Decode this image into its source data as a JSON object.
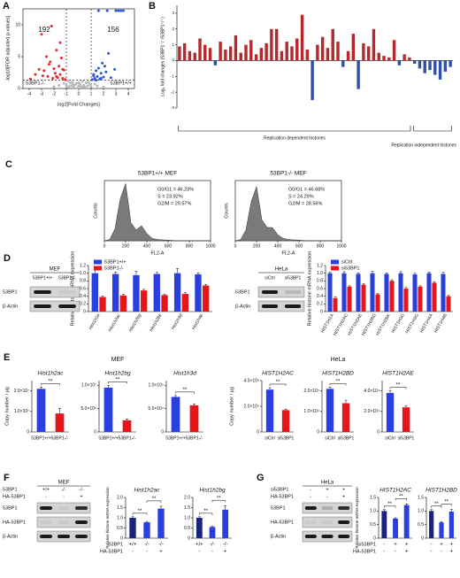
{
  "panel_labels": [
    "A",
    "B",
    "C",
    "D",
    "E",
    "F",
    "G"
  ],
  "group_titles": [
    "MEF",
    "HeLa"
  ],
  "blots": [
    {
      "title": "MEF",
      "lanes": [
        "53BP1+/+",
        "53BP1-/-"
      ],
      "rows": [
        "53BP1",
        "β-Actin"
      ]
    },
    {
      "title": "HeLa",
      "lanes": [
        "siCtrl",
        "si53BP1"
      ],
      "rows": [
        "53BP1",
        "β-Actin"
      ]
    },
    {
      "title": "MEF",
      "header": [
        {
          "label": "53BP1",
          "marks": [
            "+/+",
            "-/-",
            "-/-"
          ]
        },
        {
          "label": "HA-53BP1",
          "marks": [
            "-",
            "-",
            "+"
          ]
        }
      ],
      "rows": [
        "53BP1",
        "HA-53BP1",
        "β-Actin"
      ]
    },
    {
      "title": "HeLa",
      "header": [
        {
          "label": "si53BP1",
          "marks": [
            "-",
            "+",
            "+"
          ]
        },
        {
          "label": "HA-53BP1",
          "marks": [
            "-",
            "-",
            "+"
          ]
        }
      ],
      "rows": [
        "53BP1",
        "HA-53BP1",
        "β-Actin"
      ]
    }
  ],
  "chart_data": [
    {
      "type": "scatter",
      "xlabel": "log2[Fold Changes]",
      "ylabel": "-log10[FDR adjusted p-values]",
      "xlim": [
        -4.5,
        4.5
      ],
      "xticks": [
        -4,
        -3,
        -2,
        -1,
        0,
        1,
        2,
        3,
        4
      ],
      "ylim": [
        0,
        12.5
      ],
      "yticks": [
        0,
        5,
        10
      ],
      "thresholds_x": [
        -1,
        1
      ],
      "threshold_y": 1.3,
      "annotations": [
        "192",
        "156",
        "53BP1-/-",
        "53BP1+/+"
      ],
      "series": [
        {
          "color": "#e8262b",
          "x": [
            -3.9,
            -3.5,
            -3.2,
            -3.0,
            -2.8,
            -2.6,
            -2.5,
            -2.3,
            -2.2,
            -2.0,
            -1.9,
            -1.8,
            -1.7,
            -1.6,
            -1.5,
            -1.4,
            -1.3,
            -1.2,
            -1.1,
            -2.4,
            -1.8,
            -1.5,
            -2.9,
            -1.3,
            -2.1
          ],
          "values": [
            1.5,
            2.2,
            3.0,
            8.5,
            2.8,
            5.0,
            1.9,
            4.2,
            9.8,
            3.1,
            2.4,
            6.0,
            1.7,
            3.5,
            2.2,
            4.8,
            1.6,
            2.9,
            1.4,
            3.8,
            1.9,
            7.2,
            2.0,
            3.0,
            1.6
          ]
        },
        {
          "color": "#2a55d6",
          "x": [
            1.1,
            1.2,
            1.3,
            1.4,
            1.5,
            1.6,
            1.7,
            1.8,
            1.9,
            2.0,
            2.2,
            2.4,
            2.6,
            2.9,
            3.2,
            3.6,
            1.4,
            1.6,
            2.1,
            2.3,
            3.0,
            3.4,
            1.2,
            1.8
          ],
          "values": [
            1.4,
            2.0,
            1.6,
            2.8,
            1.9,
            3.2,
            1.5,
            2.4,
            4.0,
            1.8,
            2.6,
            5.5,
            1.7,
            3.0,
            12.2,
            12.2,
            1.3,
            12.2,
            3.5,
            12.2,
            12.2,
            12.2,
            2.2,
            1.6
          ]
        },
        {
          "color": "#b8b8b8",
          "x": [
            -1.0,
            -0.9,
            -0.8,
            -0.7,
            -0.6,
            -0.5,
            -0.4,
            -0.3,
            -0.2,
            -0.1,
            0,
            0.1,
            0.2,
            0.3,
            0.4,
            0.5,
            0.6,
            0.7,
            0.8,
            0.9,
            1.0,
            -1.6,
            -2.0,
            1.5,
            2.0,
            -0.5,
            0.3,
            -1.2,
            1.3,
            0.0
          ],
          "values": [
            0.5,
            1.2,
            0.3,
            0.9,
            0.4,
            1.0,
            0.2,
            0.6,
            0.8,
            0.1,
            0.4,
            0.7,
            0.3,
            1.1,
            0.5,
            0.2,
            0.9,
            0.4,
            1.0,
            0.6,
            0.3,
            0.5,
            0.3,
            0.4,
            0.2,
            0.6,
            0.2,
            0.8,
            0.7,
            0.9
          ]
        }
      ]
    },
    {
      "type": "bar",
      "ylabel": "Log₂ fold changes (53BP1⁻/⁻/53BP1⁺/⁺)",
      "ylim": [
        -3,
        3.5
      ],
      "yticks": [
        -3,
        -2,
        -1,
        0,
        1,
        2,
        3
      ],
      "color": "#b5282c",
      "negative_color": "#2f4fa8",
      "annotations": [
        "Replication dependent histones",
        "Replication independent histones"
      ],
      "categories": [
        null,
        null,
        null,
        null,
        null,
        null,
        null,
        null,
        null,
        null,
        null,
        null,
        null,
        null,
        null,
        null,
        null,
        null,
        null,
        null,
        null,
        null,
        null,
        null,
        null,
        null,
        null,
        null,
        null,
        null,
        null,
        null,
        null,
        null,
        null,
        null,
        null,
        null,
        null,
        null,
        null,
        null,
        null,
        null,
        null,
        null,
        null,
        null,
        null,
        null,
        null,
        null,
        null,
        null
      ],
      "values": [
        0.9,
        1.1,
        0.6,
        0.5,
        1.4,
        1.0,
        0.8,
        -0.3,
        1.2,
        0.7,
        0.9,
        1.6,
        0.5,
        1.0,
        1.3,
        0.4,
        0.8,
        1.1,
        2.0,
        2.0,
        0.6,
        1.2,
        0.9,
        1.4,
        2.9,
        0.7,
        -2.5,
        1.0,
        1.5,
        0.8,
        2.0,
        1.2,
        -0.4,
        0.6,
        1.7,
        -1.8,
        1.1,
        0.9,
        2.0,
        0.5,
        0.3,
        0.2,
        1.3,
        -0.3,
        0.4,
        0.2,
        -0.2,
        -0.5,
        -0.8,
        -0.6,
        -0.9,
        -1.2,
        -0.7,
        -0.4
      ]
    },
    {
      "type": "area",
      "title": "53BP1+/+ MEF",
      "xlabel": "FL2-A",
      "ylabel": "Counts",
      "color": "#7a7a7a",
      "xlim": [
        0,
        1000
      ],
      "xticks": [
        0,
        200,
        400,
        600,
        800,
        1000
      ],
      "ylim": [
        0,
        100
      ],
      "annotations": [
        "G0/G1 = 46.23%",
        "S = 23.92%",
        "G2/M = 29.57%"
      ],
      "x": [
        0,
        50,
        100,
        150,
        200,
        250,
        300,
        350,
        400,
        450,
        500,
        600,
        700,
        800,
        1000
      ],
      "values": [
        0,
        2,
        20,
        70,
        95,
        30,
        18,
        25,
        12,
        4,
        2,
        1,
        0,
        0,
        0
      ]
    },
    {
      "type": "area",
      "title": "53BP1-/- MEF",
      "xlabel": "FL2-A",
      "ylabel": "Counts",
      "color": "#7a7a7a",
      "xlim": [
        0,
        1000
      ],
      "xticks": [
        0,
        200,
        400,
        600,
        800,
        1000
      ],
      "ylim": [
        0,
        100
      ],
      "annotations": [
        "G0/G1 = 46.68%",
        "S = 24.29%",
        "G2/M = 28.56%"
      ],
      "x": [
        0,
        50,
        100,
        150,
        200,
        250,
        300,
        350,
        400,
        450,
        500,
        600,
        700,
        800,
        1000
      ],
      "values": [
        0,
        2,
        18,
        65,
        90,
        35,
        22,
        22,
        10,
        4,
        2,
        1,
        0,
        0,
        0
      ]
    },
    {
      "type": "bar",
      "ylabel": "Relative histone mRNA expression",
      "ylim": [
        0,
        1.2
      ],
      "yticks": [
        0,
        0.2,
        0.4,
        0.6,
        0.8,
        {
          "value": 1,
          "label": "1.0"
        },
        1.2
      ],
      "legend": "upper left",
      "categories": [
        "Hist1h1a",
        "Hist1h2ac",
        "Hist1h2bg",
        "Hist1h2bk",
        "Hist1h3d",
        "Hist1h4e"
      ],
      "series": [
        {
          "name": "53BP1+/+",
          "color": "#2a3fe0",
          "values": [
            1.0,
            0.98,
            0.95,
            0.98,
            1.0,
            0.97
          ],
          "errors": [
            0.08,
            0.05,
            0.1,
            0.04,
            0.12,
            0.04
          ]
        },
        {
          "name": "53BP1-/-",
          "color": "#e5161b",
          "values": [
            0.38,
            0.42,
            0.55,
            0.43,
            0.46,
            0.68
          ],
          "errors": [
            0.02,
            0.03,
            0.03,
            0.02,
            0.03,
            0.03
          ]
        }
      ]
    },
    {
      "type": "bar",
      "ylabel": "Relative histone mRNA expression",
      "ylim": [
        0,
        1.2
      ],
      "yticks": [
        0,
        0.2,
        0.4,
        0.6,
        0.8,
        {
          "value": 1,
          "label": "1.0"
        },
        1.2
      ],
      "legend": "upper left",
      "categories": [
        "HIST1H1A",
        "HIST1H2AC",
        "HIST1H2AE",
        "HIST1H2BD",
        "HIST1H2BK",
        "HIST1H3D",
        "HIST1H3G",
        "HIST1H4A",
        "HIST1H4B"
      ],
      "series": [
        {
          "name": "siCtrl",
          "color": "#2a3fe0",
          "values": [
            1.0,
            1.0,
            0.98,
            1.0,
            0.98,
            1.0,
            0.97,
            1.0,
            0.98
          ],
          "errors": [
            0.03,
            0.04,
            0.03,
            0.05,
            0.03,
            0.04,
            0.03,
            0.03,
            0.04
          ]
        },
        {
          "name": "si53BP1",
          "color": "#e5161b",
          "values": [
            0.35,
            0.65,
            0.7,
            0.45,
            0.8,
            0.6,
            0.65,
            0.75,
            0.4
          ],
          "errors": [
            0.03,
            0.02,
            0.03,
            0.02,
            0.03,
            0.03,
            0.02,
            0.03,
            0.02
          ]
        }
      ]
    },
    {
      "type": "bar",
      "title": "Hist1h2ac",
      "ylabel": "Copy number / μg",
      "ylim": [
        0,
        25000000
      ],
      "yticks": [
        0,
        {
          "value": 10000000,
          "label": "1.0×10⁷"
        },
        {
          "value": 20000000,
          "label": "2.0×10⁷"
        }
      ],
      "categories": [
        "53BP1+/+",
        "53BP1-/-"
      ],
      "colors": [
        "#2a3fe0",
        "#e5161b"
      ],
      "values": [
        21000000,
        9000000
      ],
      "errors": [
        800000,
        2500000
      ],
      "significance": [
        "**"
      ]
    },
    {
      "type": "bar",
      "title": "Hist1h2bg",
      "ylim": [
        0,
        11000000
      ],
      "yticks": [
        0,
        {
          "value": 5000000,
          "label": "5.0×10⁶"
        },
        {
          "value": 10000000,
          "label": "1.0×10⁷"
        }
      ],
      "categories": [
        "53BP1+/+",
        "53BP1-/-"
      ],
      "colors": [
        "#2a3fe0",
        "#e5161b"
      ],
      "values": [
        9500000,
        2500000
      ],
      "errors": [
        500000,
        300000
      ],
      "significance": [
        "**"
      ]
    },
    {
      "type": "bar",
      "title": "Hist1h3d",
      "ylim": [
        0,
        110000
      ],
      "yticks": [
        0,
        {
          "value": 50000,
          "label": "5.0×10⁴"
        },
        {
          "value": 100000,
          "label": "1.0×10⁵"
        }
      ],
      "categories": [
        "53BP1+/+",
        "53BP1-/-"
      ],
      "colors": [
        "#2a3fe0",
        "#e5161b"
      ],
      "values": [
        75000,
        57000
      ],
      "errors": [
        3000,
        3000
      ],
      "significance": [
        "**"
      ]
    },
    {
      "type": "bar",
      "title": "HIST1H2AC",
      "ylabel": "Copy number / μg",
      "ylim": [
        0,
        400000
      ],
      "yticks": [
        0,
        {
          "value": 200000,
          "label": "2.0×10⁵"
        },
        {
          "value": 400000,
          "label": "4.0×10⁵"
        }
      ],
      "categories": [
        "siCtrl",
        "si53BP1"
      ],
      "colors": [
        "#2a3fe0",
        "#e5161b"
      ],
      "values": [
        330000,
        170000
      ],
      "errors": [
        15000,
        8000
      ],
      "significance": [
        "**"
      ]
    },
    {
      "type": "bar",
      "title": "HIST1H2BD",
      "ylim": [
        0,
        25000
      ],
      "yticks": [
        0,
        {
          "value": 10000,
          "label": "1.0×10⁴"
        },
        {
          "value": 20000,
          "label": "2.0×10⁴"
        }
      ],
      "categories": [
        "siCtrl",
        "si53BP1"
      ],
      "colors": [
        "#2a3fe0",
        "#e5161b"
      ],
      "values": [
        21000,
        14000
      ],
      "errors": [
        800,
        1500
      ],
      "significance": [
        "**"
      ]
    },
    {
      "type": "bar",
      "title": "HIST1H2AE",
      "ylim": [
        0,
        50000
      ],
      "yticks": [
        0,
        {
          "value": 20000,
          "label": "2.0×10⁴"
        },
        {
          "value": 40000,
          "label": "4.0×10⁴"
        }
      ],
      "categories": [
        "siCtrl",
        "si53BP1"
      ],
      "colors": [
        "#2a3fe0",
        "#e5161b"
      ],
      "values": [
        38000,
        24000
      ],
      "errors": [
        2000,
        1500
      ],
      "significance": [
        "**"
      ]
    },
    {
      "type": "bar",
      "title": "Hist1h2ac",
      "ylabel": "Relative histone mRNA expression",
      "ylim": [
        0,
        2
      ],
      "yticks": [
        0,
        0.5,
        {
          "value": 1,
          "label": "1.0"
        },
        1.5,
        {
          "value": 2,
          "label": "2.0"
        }
      ],
      "categories": [
        "+/+",
        "-/-",
        "-/-"
      ],
      "category_label": "53BP1",
      "categories_2": [
        "-",
        "-",
        "+"
      ],
      "category_label_2": "HA-53BP1",
      "colors": [
        "#1a237e",
        "#2a3fe0",
        "#2a3fe0"
      ],
      "values": [
        1.0,
        0.78,
        1.45
      ],
      "errors": [
        0.05,
        0.04,
        0.12
      ],
      "significance": [
        "**",
        "**"
      ]
    },
    {
      "type": "bar",
      "title": "Hist1h2bg",
      "ylim": [
        0,
        2
      ],
      "yticks": [
        0,
        0.5,
        {
          "value": 1,
          "label": "1.0"
        },
        1.5,
        {
          "value": 2,
          "label": "2.0"
        }
      ],
      "categories": [
        "+/+",
        "-/-",
        "-/-"
      ],
      "categories_2": [
        "-",
        "-",
        "+"
      ],
      "colors": [
        "#1a237e",
        "#2a3fe0",
        "#2a3fe0"
      ],
      "values": [
        1.0,
        0.55,
        1.4
      ],
      "errors": [
        0.05,
        0.05,
        0.2
      ],
      "significance": [
        "**",
        "**"
      ]
    },
    {
      "type": "bar",
      "title": "HIST1H2AC",
      "ylabel": "Relative histone mRNA expression",
      "ylim": [
        0,
        1.5
      ],
      "yticks": [
        0,
        0.5,
        {
          "value": 1,
          "label": "1.0"
        },
        1.5
      ],
      "categories": [
        "-",
        "+",
        "+"
      ],
      "category_label": "si53BP1",
      "categories_2": [
        "-",
        "-",
        "+"
      ],
      "category_label_2": "HA-53BP1",
      "colors": [
        "#1a237e",
        "#2a3fe0",
        "#2a3fe0"
      ],
      "values": [
        1.0,
        0.72,
        1.22
      ],
      "errors": [
        0.05,
        0.03,
        0.04
      ],
      "significance": [
        "**",
        "**"
      ]
    },
    {
      "type": "bar",
      "title": "HIST1H2BD",
      "ylim": [
        0,
        1.5
      ],
      "yticks": [
        0,
        0.5,
        {
          "value": 1,
          "label": "1.0"
        },
        1.5
      ],
      "categories": [
        "-",
        "+",
        "+"
      ],
      "categories_2": [
        "-",
        "-",
        "+"
      ],
      "colors": [
        "#1a237e",
        "#2a3fe0",
        "#2a3fe0"
      ],
      "values": [
        1.0,
        0.58,
        0.98
      ],
      "errors": [
        0.05,
        0.03,
        0.08
      ],
      "significance": [
        "**",
        "**"
      ]
    }
  ]
}
